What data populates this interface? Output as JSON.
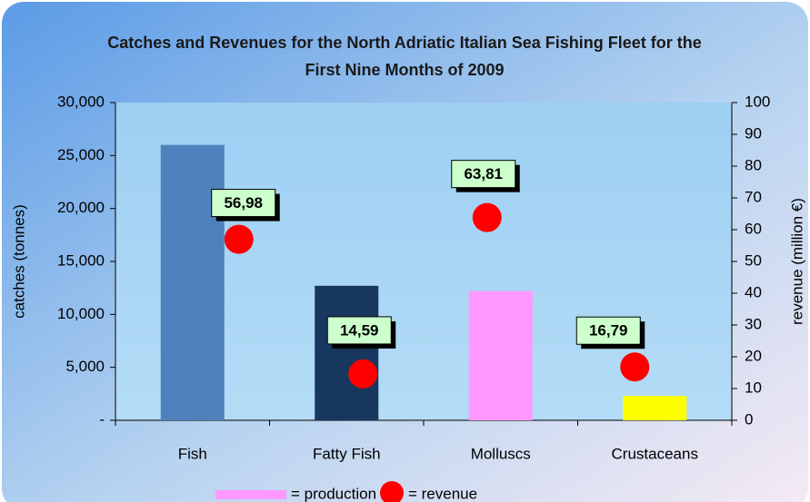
{
  "chart_data": {
    "type": "bar",
    "title": "Catches and Revenues for the North Adriatic Italian Sea Fishing Fleet for the First Nine Months of 2009",
    "categories": [
      "Fish",
      "Fatty Fish",
      "Molluscs",
      "Crustaceans"
    ],
    "series": [
      {
        "name": "= production",
        "type": "bar",
        "color": "#ff99ff",
        "colors": [
          "#4f81bd",
          "#17375e",
          "#ff99ff",
          "#ffff00"
        ],
        "values": [
          26000,
          12700,
          12200,
          2300
        ]
      },
      {
        "name": "= revenue",
        "type": "scatter",
        "axis": "y2",
        "color": "#ff0000",
        "values": [
          56.98,
          14.59,
          63.81,
          16.79
        ],
        "value_labels": [
          "56,98",
          "14,59",
          "63,81",
          "16,79"
        ]
      }
    ],
    "ylabel": "catches (tonnes)",
    "y2label": "revenue (million €)",
    "ylim": [
      0,
      30000
    ],
    "yticks": [
      {
        "value": 0,
        "label": "-"
      },
      {
        "value": 5000,
        "label": "5,000"
      },
      {
        "value": 10000,
        "label": "10,000"
      },
      {
        "value": 15000,
        "label": "15,000"
      },
      {
        "value": 20000,
        "label": "20,000"
      },
      {
        "value": 25000,
        "label": "25,000"
      },
      {
        "value": 30000,
        "label": "30,000"
      }
    ],
    "y2lim": [
      0,
      100
    ],
    "y2ticks": [
      0,
      10,
      20,
      30,
      40,
      50,
      60,
      70,
      80,
      90,
      100
    ],
    "grid": false,
    "legend": "bottom"
  }
}
